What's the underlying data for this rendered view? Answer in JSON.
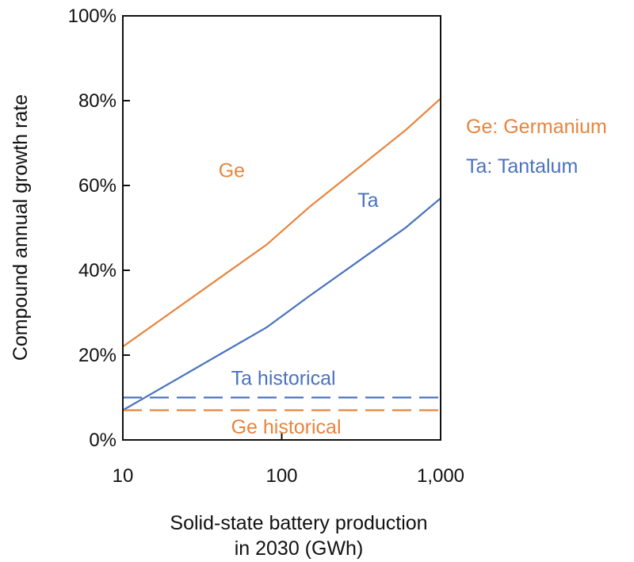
{
  "chart_data": {
    "type": "line",
    "xlabel_lines": [
      "Solid-state battery production",
      "in 2030 (GWh)"
    ],
    "ylabel": "Compound annual growth rate",
    "x_scale": "log",
    "xlim": [
      10,
      1000
    ],
    "ylim": [
      0,
      100
    ],
    "x_ticks": [
      {
        "value": 10,
        "label": "10"
      },
      {
        "value": 100,
        "label": "100"
      },
      {
        "value": 1000,
        "label": "1,000"
      }
    ],
    "y_ticks": [
      {
        "value": 0,
        "label": "0%"
      },
      {
        "value": 20,
        "label": "20%"
      },
      {
        "value": 40,
        "label": "40%"
      },
      {
        "value": 60,
        "label": "60%"
      },
      {
        "value": 80,
        "label": "80%"
      },
      {
        "value": 100,
        "label": "100%"
      }
    ],
    "grid": false,
    "series": [
      {
        "name": "Ge",
        "color": "#E8843C",
        "style": "solid",
        "x": [
          10,
          20,
          40,
          80,
          150,
          300,
          600,
          1000
        ],
        "y": [
          22,
          30,
          38,
          46,
          55,
          64,
          73,
          80.5
        ]
      },
      {
        "name": "Ta",
        "color": "#4A72BE",
        "style": "solid",
        "x": [
          10,
          20,
          40,
          80,
          150,
          300,
          600,
          1000
        ],
        "y": [
          7,
          13.5,
          20,
          26.5,
          34,
          42,
          50,
          57
        ]
      },
      {
        "name": "Ta historical",
        "color": "#4A72BE",
        "style": "dashed",
        "x": [
          10,
          1000
        ],
        "y": [
          10,
          10
        ]
      },
      {
        "name": "Ge historical",
        "color": "#E8843C",
        "style": "dashed",
        "x": [
          10,
          1000
        ],
        "y": [
          7,
          7
        ]
      }
    ],
    "annotations": [
      {
        "text": "Ge",
        "x": 40,
        "y": 62,
        "color": "#E8843C"
      },
      {
        "text": "Ta",
        "x": 300,
        "y": 55,
        "color": "#4A72BE"
      },
      {
        "text": "Ta historical",
        "x": 48,
        "y": 13,
        "color": "#4A72BE"
      },
      {
        "text": "Ge historical",
        "x": 48,
        "y": 1.5,
        "color": "#E8843C"
      }
    ],
    "legend": {
      "placement": "right",
      "entries": [
        {
          "text": "Ge: Germanium",
          "color": "#E8843C"
        },
        {
          "text": "Ta: Tantalum",
          "color": "#4A72BE"
        }
      ]
    }
  }
}
